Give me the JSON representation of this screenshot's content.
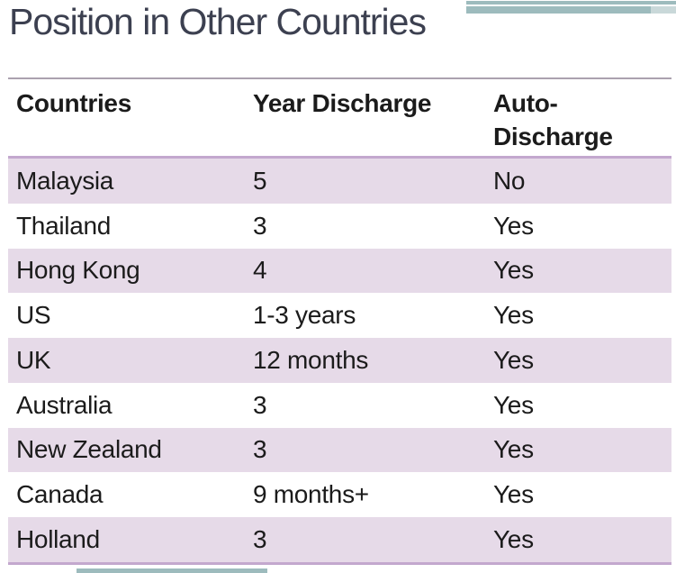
{
  "title": "Position in Other Countries",
  "colors": {
    "teal": "#9DBBBD",
    "teal-light": "#C9D8D9",
    "lavender": "#E6DAE8",
    "accent-border": "#C3A8CE",
    "rule": "#ABA1AF",
    "title-color": "#3C4050",
    "text": "#1B1B1B"
  },
  "chart_data": {
    "type": "table",
    "title": "Position in Other Countries",
    "columns": [
      "Countries",
      "Year Discharge",
      "Auto-Discharge"
    ],
    "rows": [
      [
        "Malaysia",
        "5",
        "No"
      ],
      [
        "Thailand",
        "3",
        "Yes"
      ],
      [
        "Hong Kong",
        "4",
        "Yes"
      ],
      [
        "US",
        "1-3 years",
        "Yes"
      ],
      [
        "UK",
        "12 months",
        "Yes"
      ],
      [
        "Australia",
        "3",
        "Yes"
      ],
      [
        "New Zealand",
        "3",
        "Yes"
      ],
      [
        "Canada",
        "9 months+",
        "Yes"
      ],
      [
        "Holland",
        "3",
        "Yes"
      ]
    ],
    "layout_hints": {
      "zebra_striping": "odd rows lavender starting with first data row",
      "header_bold": true,
      "grid": "horizontal accent borders above header, below header, below last row"
    }
  }
}
